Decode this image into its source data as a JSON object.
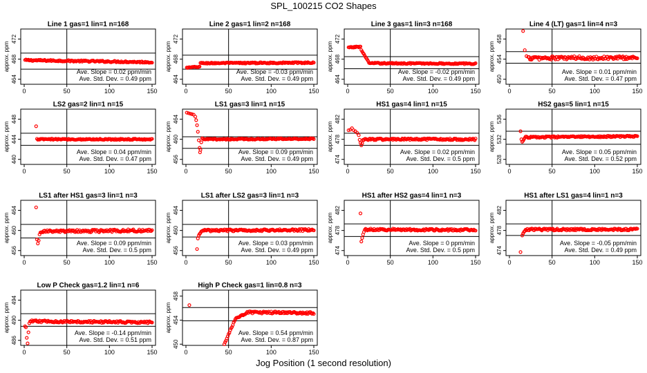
{
  "figure": {
    "title": "SPL_100215  CO2 Shapes",
    "xlabel": "Jog Position (1 second resolution)"
  },
  "chart_data": [
    {
      "type": "scatter",
      "title": "Line 1 gas=1 lin=1 n=168",
      "ylabel": "approx. ppm",
      "xlim": [
        0,
        150
      ],
      "ylim": [
        463,
        474
      ],
      "xticks": [
        0,
        50,
        100,
        150
      ],
      "yticks": [
        464,
        468,
        472
      ],
      "hlines": [
        469.2,
        466.0
      ],
      "vline": 50,
      "slope_text": "Ave. Slope =  0.02  ppm/min",
      "std_text": "Ave. Std. Dev. =  0.49  ppm",
      "segments": [
        {
          "x0": 1,
          "x1": 150,
          "y0": 467.8,
          "y1": 467.4,
          "noise": 0.15,
          "step": 1
        }
      ]
    },
    {
      "type": "scatter",
      "title": "Line 2 gas=1 lin=2 n=168",
      "ylabel": "approx. ppm",
      "xlim": [
        0,
        150
      ],
      "ylim": [
        463,
        474
      ],
      "xticks": [
        0,
        50,
        100,
        150
      ],
      "yticks": [
        464,
        468,
        472
      ],
      "hlines": [
        468.8,
        466.0
      ],
      "vline": 50,
      "slope_text": "Ave. Slope =  -0.03  ppm/min",
      "std_text": "Ave. Std. Dev. =  0.49  ppm",
      "segments": [
        {
          "x0": 1,
          "x1": 16,
          "y0": 466.3,
          "y1": 466.5,
          "noise": 0.1,
          "step": 1
        },
        {
          "x0": 17,
          "x1": 150,
          "y0": 467.2,
          "y1": 467.3,
          "noise": 0.12,
          "step": 1
        }
      ]
    },
    {
      "type": "scatter",
      "title": "Line 3 gas=1 lin=3 n=168",
      "ylabel": "approx. ppm",
      "xlim": [
        0,
        150
      ],
      "ylim": [
        463,
        474
      ],
      "xticks": [
        0,
        50,
        100,
        150
      ],
      "yticks": [
        464,
        468,
        472
      ],
      "hlines": [
        468.5,
        466.1
      ],
      "vline": 50,
      "slope_text": "Ave. Slope =  -0.02  ppm/min",
      "std_text": "Ave. Std. Dev. =  0.49  ppm",
      "segments": [
        {
          "x0": 1,
          "x1": 15,
          "y0": 470.3,
          "y1": 470.5,
          "noise": 0.12,
          "step": 1
        },
        {
          "x0": 16,
          "x1": 24,
          "y0": 469.8,
          "y1": 467.6,
          "noise": 0.05,
          "step": 1
        },
        {
          "x0": 25,
          "x1": 150,
          "y0": 467.2,
          "y1": 467.1,
          "noise": 0.12,
          "step": 1
        }
      ]
    },
    {
      "type": "scatter",
      "title": "Line 4 (LT) gas=1 lin=4 n=3",
      "ylabel": "approx. ppm",
      "xlim": [
        0,
        150
      ],
      "ylim": [
        449,
        460
      ],
      "xticks": [
        0,
        50,
        100,
        150
      ],
      "yticks": [
        450,
        454,
        458
      ],
      "hlines": [
        455.5,
        453.2
      ],
      "vline": 50,
      "slope_text": "Ave. Slope =  0.01  ppm/min",
      "std_text": "Ave. Std. Dev. =  0.47  ppm",
      "points": [
        [
          16,
          459.6
        ],
        [
          18,
          455.8
        ],
        [
          20,
          454.6
        ]
      ],
      "segments": [
        {
          "x0": 22,
          "x1": 150,
          "y0": 454.2,
          "y1": 454.3,
          "noise": 0.35,
          "step": 1
        }
      ]
    },
    {
      "type": "scatter",
      "title": "LS2 gas=2 lin=1 n=15",
      "ylabel": "approx. ppm",
      "xlim": [
        0,
        150
      ],
      "ylim": [
        439,
        450
      ],
      "xticks": [
        0,
        50,
        100,
        150
      ],
      "yticks": [
        440,
        444,
        448
      ],
      "hlines": [
        445.2,
        442.8
      ],
      "vline": 50,
      "slope_text": "Ave. Slope =  0.04  ppm/min",
      "std_text": "Ave. Std. Dev. =  0.47  ppm",
      "points": [
        [
          14,
          446.6
        ]
      ],
      "segments": [
        {
          "x0": 15,
          "x1": 150,
          "y0": 444.0,
          "y1": 444.0,
          "noise": 0.12,
          "step": 1
        }
      ]
    },
    {
      "type": "scatter",
      "title": "LS1 gas=3 lin=1 n=15",
      "ylabel": "approx. ppm",
      "xlim": [
        0,
        150
      ],
      "ylim": [
        455,
        466
      ],
      "xticks": [
        0,
        50,
        100,
        150
      ],
      "yticks": [
        456,
        460,
        464
      ],
      "hlines": [
        460.5,
        458.2
      ],
      "vline": 50,
      "slope_text": "Ave. Slope =  0.09  ppm/min",
      "std_text": "Ave. Std. Dev. =  0.49  ppm",
      "points": [
        [
          1,
          465.3
        ],
        [
          3,
          465.2
        ],
        [
          5,
          465.1
        ],
        [
          7,
          465.0
        ],
        [
          9,
          464.9
        ],
        [
          11,
          464.5
        ],
        [
          12,
          463.8
        ],
        [
          13,
          462.8
        ],
        [
          14,
          461.5
        ],
        [
          15,
          459.8
        ],
        [
          16,
          458.3
        ],
        [
          16.5,
          457.4
        ],
        [
          17,
          457.9
        ],
        [
          18,
          459.4
        ],
        [
          19,
          460.2
        ]
      ],
      "segments": [
        {
          "x0": 20,
          "x1": 150,
          "y0": 460.0,
          "y1": 460.1,
          "noise": 0.12,
          "step": 1
        }
      ]
    },
    {
      "type": "scatter",
      "title": "HS1 gas=4 lin=1 n=15",
      "ylabel": "approx. ppm",
      "xlim": [
        0,
        150
      ],
      "ylim": [
        473,
        484
      ],
      "xticks": [
        0,
        50,
        100,
        150
      ],
      "yticks": [
        474,
        478,
        482
      ],
      "hlines": [
        479.2,
        476.8
      ],
      "vline": 50,
      "slope_text": "Ave. Slope =  0.02  ppm/min",
      "std_text": "Ave. Std. Dev. =  0.5  ppm",
      "points": [
        [
          1,
          479.8
        ],
        [
          3,
          479.9
        ],
        [
          5,
          480.2
        ],
        [
          7,
          479.8
        ],
        [
          9,
          479.6
        ],
        [
          11,
          479.3
        ],
        [
          13,
          478.8
        ],
        [
          14,
          477.9
        ],
        [
          15,
          477.3
        ],
        [
          16,
          476.8
        ],
        [
          17,
          477.2
        ],
        [
          18,
          477.9
        ]
      ],
      "segments": [
        {
          "x0": 19,
          "x1": 150,
          "y0": 478.0,
          "y1": 478.0,
          "noise": 0.18,
          "step": 1
        }
      ]
    },
    {
      "type": "scatter",
      "title": "HS2 gas=5 lin=1 n=15",
      "ylabel": "approx. ppm",
      "xlim": [
        0,
        150
      ],
      "ylim": [
        527,
        538
      ],
      "xticks": [
        0,
        50,
        100,
        150
      ],
      "yticks": [
        528,
        532,
        536
      ],
      "hlines": [
        533.6,
        531.0
      ],
      "vline": 50,
      "slope_text": "Ave. Slope =  0.05  ppm/min",
      "std_text": "Ave. Std. Dev. =  0.52  ppm",
      "points": [
        [
          13,
          533.6
        ],
        [
          14,
          532.0
        ],
        [
          15,
          531.5
        ],
        [
          16,
          531.7
        ],
        [
          17,
          532.0
        ]
      ],
      "segments": [
        {
          "x0": 18,
          "x1": 150,
          "y0": 532.4,
          "y1": 532.6,
          "noise": 0.15,
          "step": 1
        }
      ]
    },
    {
      "type": "scatter",
      "title": "LS1 after HS1 gas=3 lin=1 n=3",
      "ylabel": "approx. ppm",
      "xlim": [
        0,
        150
      ],
      "ylim": [
        455,
        466
      ],
      "xticks": [
        0,
        50,
        100,
        150
      ],
      "yticks": [
        456,
        460,
        464
      ],
      "hlines": [
        461.2,
        458.5
      ],
      "vline": 50,
      "slope_text": "Ave. Slope =  0.09  ppm/min",
      "std_text": "Ave. Std. Dev. =  0.5  ppm",
      "points": [
        [
          14,
          464.6
        ],
        [
          15,
          458.2
        ],
        [
          16,
          457.4
        ],
        [
          17,
          458.0
        ],
        [
          18,
          459.2
        ],
        [
          19,
          459.6
        ]
      ],
      "segments": [
        {
          "x0": 20,
          "x1": 150,
          "y0": 459.8,
          "y1": 460.0,
          "noise": 0.25,
          "step": 1
        }
      ]
    },
    {
      "type": "scatter",
      "title": "LS1 after LS2 gas=3 lin=1 n=3",
      "ylabel": "approx. ppm",
      "xlim": [
        0,
        150
      ],
      "ylim": [
        455,
        466
      ],
      "xticks": [
        0,
        50,
        100,
        150
      ],
      "yticks": [
        456,
        460,
        464
      ],
      "hlines": [
        461.2,
        458.7
      ],
      "vline": 50,
      "slope_text": "Ave. Slope =  0.03  ppm/min",
      "std_text": "Ave. Std. Dev. =  0.49  ppm",
      "points": [
        [
          13,
          456.3
        ],
        [
          14,
          458.4
        ],
        [
          15,
          459.0
        ],
        [
          16,
          459.3
        ],
        [
          17,
          459.5
        ],
        [
          18,
          459.8
        ]
      ],
      "segments": [
        {
          "x0": 19,
          "x1": 150,
          "y0": 460.0,
          "y1": 460.1,
          "noise": 0.2,
          "step": 1
        }
      ]
    },
    {
      "type": "scatter",
      "title": "HS1 after HS2 gas=4 lin=1 n=3",
      "ylabel": "approx. ppm",
      "xlim": [
        0,
        150
      ],
      "ylim": [
        473,
        484
      ],
      "xticks": [
        0,
        50,
        100,
        150
      ],
      "yticks": [
        474,
        478,
        482
      ],
      "hlines": [
        479.3,
        476.8
      ],
      "vline": 50,
      "slope_text": "Ave. Slope =  0  ppm/min",
      "std_text": "Ave. Std. Dev. =  0.5  ppm",
      "points": [
        [
          15,
          481.4
        ],
        [
          16,
          475.8
        ],
        [
          17,
          476.5
        ],
        [
          18,
          477.2
        ],
        [
          19,
          477.7
        ]
      ],
      "segments": [
        {
          "x0": 20,
          "x1": 150,
          "y0": 478.2,
          "y1": 478.1,
          "noise": 0.2,
          "step": 1
        }
      ]
    },
    {
      "type": "scatter",
      "title": "HS1 after LS1 gas=4 lin=1 n=3",
      "ylabel": "approx. ppm",
      "xlim": [
        0,
        150
      ],
      "ylim": [
        473,
        484
      ],
      "xticks": [
        0,
        50,
        100,
        150
      ],
      "yticks": [
        474,
        478,
        482
      ],
      "hlines": [
        479.3,
        477.0
      ],
      "vline": 50,
      "slope_text": "Ave. Slope =  -0.05  ppm/min",
      "std_text": "Ave. Std. Dev. =  0.49  ppm",
      "points": [
        [
          13,
          473.7
        ],
        [
          15,
          477.0
        ],
        [
          16,
          477.4
        ],
        [
          17,
          477.7
        ],
        [
          18,
          477.9
        ]
      ],
      "segments": [
        {
          "x0": 19,
          "x1": 150,
          "y0": 478.2,
          "y1": 478.2,
          "noise": 0.2,
          "step": 1
        }
      ]
    },
    {
      "type": "scatter",
      "title": "Low P Check gas=1.2 lin=1 n=6",
      "ylabel": "approx. ppm",
      "xlim": [
        0,
        150
      ],
      "ylim": [
        485,
        496
      ],
      "xticks": [
        0,
        50,
        100,
        150
      ],
      "yticks": [
        486,
        490,
        494
      ],
      "hlines": [
        491.3,
        488.8
      ],
      "vline": 50,
      "slope_text": "Ave. Slope =  -0.14  ppm/min",
      "std_text": "Ave. Std. Dev. =  0.51  ppm",
      "points": [
        [
          1,
          488.8
        ],
        [
          2,
          488.6
        ],
        [
          3,
          486.5
        ],
        [
          4,
          485.4
        ],
        [
          5,
          487.6
        ],
        [
          6,
          489.4
        ]
      ],
      "segments": [
        {
          "x0": 7,
          "x1": 150,
          "y0": 489.8,
          "y1": 489.6,
          "noise": 0.2,
          "step": 1
        }
      ]
    },
    {
      "type": "scatter",
      "title": "High P Check gas=1 lin=0.8 n=3",
      "ylabel": "approx. ppm",
      "xlim": [
        0,
        150
      ],
      "ylim": [
        449.8,
        459
      ],
      "xticks": [
        0,
        50,
        100,
        150
      ],
      "yticks": [
        450,
        454,
        458
      ],
      "hlines": [
        456.1,
        453.9
      ],
      "vline": 50,
      "slope_text": "Ave. Slope =  0.54  ppm/min",
      "std_text": "Ave. Std. Dev. =  0.87  ppm",
      "points": [
        [
          4,
          456.5
        ]
      ],
      "segments": [
        {
          "x0": 45,
          "x1": 58,
          "y0": 450.0,
          "y1": 454.2,
          "noise": 0.08,
          "step": 1
        },
        {
          "x0": 59,
          "x1": 70,
          "y0": 454.3,
          "y1": 455.1,
          "noise": 0.1,
          "step": 1
        },
        {
          "x0": 71,
          "x1": 150,
          "y0": 455.3,
          "y1": 455.2,
          "noise": 0.18,
          "step": 1
        }
      ]
    }
  ]
}
